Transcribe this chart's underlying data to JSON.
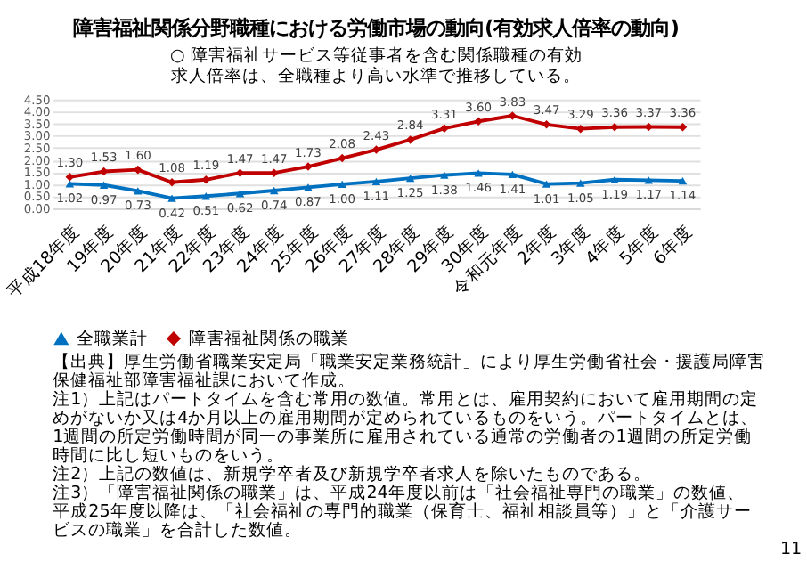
{
  "chart_data": {
    "type": "line",
    "title": "障害福祉関係分野職種における労働市場の動向(有効求人倍率の動向)",
    "subtitle": "○ 障害福祉サービス等従事者を含む関係職種の有効求人倍率は、全職種より高い水準で推移している。",
    "categories": [
      "平成18年度",
      "19年度",
      "20年度",
      "21年度",
      "22年度",
      "23年度",
      "24年度",
      "25年度",
      "26年度",
      "27年度",
      "28年度",
      "29年度",
      "30年度",
      "令和元年度",
      "2年度",
      "3年度",
      "4年度",
      "5年度",
      "6年度"
    ],
    "series": [
      {
        "name": "全職業計",
        "color": "#0070c0",
        "marker": "triangle",
        "values": [
          1.02,
          0.97,
          0.73,
          0.42,
          0.51,
          0.62,
          0.74,
          0.87,
          1.0,
          1.11,
          1.25,
          1.38,
          1.46,
          1.41,
          1.01,
          1.05,
          1.19,
          1.17,
          1.14
        ],
        "value_labels": [
          "1.02",
          "0.97",
          "0.73",
          "0.42",
          "0.51",
          "0.62",
          "0.74",
          "0.87",
          "1.00",
          "1.11",
          "1.25",
          "1.38",
          "1.46",
          "1.41",
          "1.01",
          "1.05",
          "1.19",
          "1.17",
          "1.14"
        ]
      },
      {
        "name": "障害福祉関係の職業",
        "color": "#c00000",
        "marker": "diamond",
        "values": [
          1.3,
          1.53,
          1.6,
          1.08,
          1.19,
          1.47,
          1.47,
          1.73,
          2.08,
          2.43,
          2.84,
          3.31,
          3.6,
          3.83,
          3.47,
          3.29,
          3.36,
          3.37,
          3.36
        ],
        "value_labels": [
          "1.30",
          "1.53",
          "1.60",
          "1.08",
          "1.19",
          "1.47",
          "1.47",
          "1.73",
          "2.08",
          "2.43",
          "2.84",
          "3.31",
          "3.60",
          "3.83",
          "3.47",
          "3.29",
          "3.36",
          "3.37",
          "3.36"
        ]
      }
    ],
    "ylim": [
      0,
      4.5
    ],
    "yticks": [
      {
        "value": 0,
        "label": "0.00"
      },
      {
        "value": 0.5,
        "label": "0.50"
      },
      {
        "value": 1,
        "label": "1.00"
      },
      {
        "value": 1.5,
        "label": "1.50"
      },
      {
        "value": 2,
        "label": "2.00"
      },
      {
        "value": 2.5,
        "label": "2.50"
      },
      {
        "value": 3,
        "label": "3.00"
      },
      {
        "value": 3.5,
        "label": "3.50"
      },
      {
        "value": 4,
        "label": "4.00"
      },
      {
        "value": 4.5,
        "label": "4.50"
      }
    ],
    "grid": "y",
    "legend": "bottom",
    "line_style": "solid",
    "annotations": [
      "【出典】厚生労働省職業安定局「職業安定業務統計」により厚生労働省社会・援護局障害保健福祉部障害福祉課において作成。",
      "注1）上記はパートタイムを含む常用の数値。常用とは、雇用契約において雇用期間の定めがないか又は4か月以上の雇用期間が定められているものをいう。パートタイムとは、1週間の所定労働時間が同一の事業所に雇用されている通常の労働者の1週間の所定労働時間に比し短いものをいう。",
      "注2）上記の数値は、新規学卒者及び新規学卒者求人を除いたものである。",
      "注3）「障害福祉関係の職業」は、平成24年度以前は「社会福祉専門の職業」の数値、平成25年度以降は、「社会福祉の専門的職業（保育士、福祉相談員等）」と「介護サービスの職業」を合計した数値。",
      "11"
    ]
  }
}
